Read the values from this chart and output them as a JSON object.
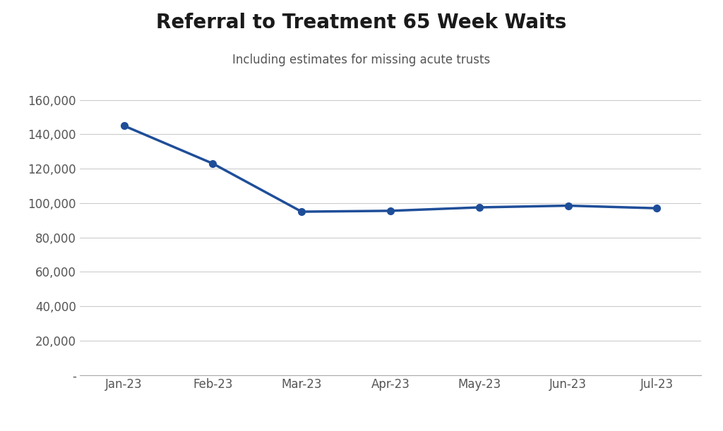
{
  "title": "Referral to Treatment 65 Week Waits",
  "subtitle": "Including estimates for missing acute trusts",
  "x_labels": [
    "Jan-23",
    "Feb-23",
    "Mar-23",
    "Apr-23",
    "May-23",
    "Jun-23",
    "Jul-23"
  ],
  "y_values": [
    145000,
    123000,
    95000,
    95500,
    97500,
    98500,
    97000
  ],
  "line_color": "#1F4E99",
  "marker_color": "#1F4E99",
  "background_color": "#FFFFFF",
  "ylim": [
    0,
    168000
  ],
  "yticks": [
    0,
    20000,
    40000,
    60000,
    80000,
    100000,
    120000,
    140000,
    160000
  ],
  "title_fontsize": 20,
  "subtitle_fontsize": 12,
  "tick_fontsize": 12,
  "line_width": 2.5,
  "marker_size": 7
}
